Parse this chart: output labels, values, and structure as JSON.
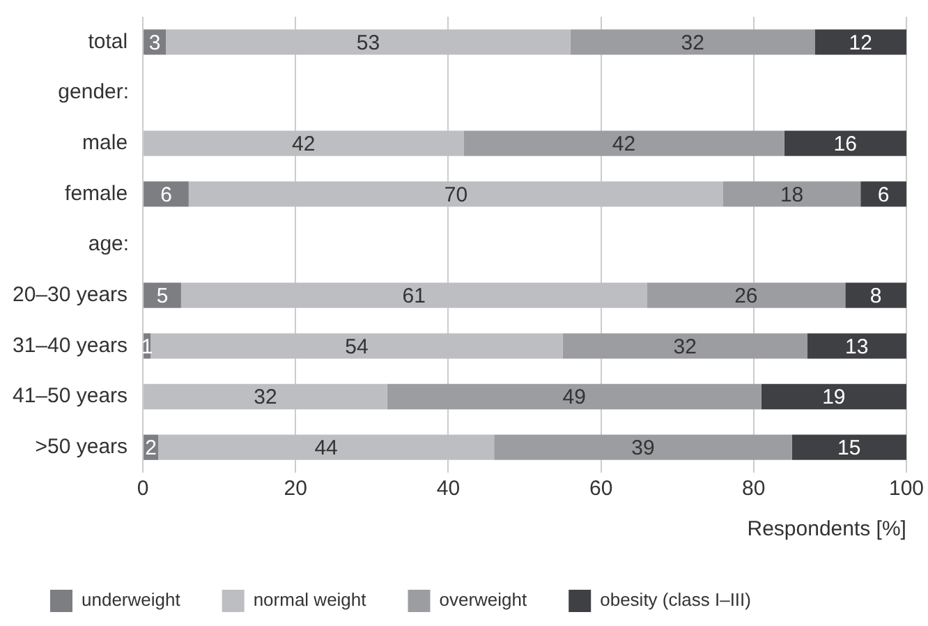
{
  "chart_data": {
    "type": "bar",
    "orientation": "horizontal",
    "stacked": true,
    "xlabel": "Respondents [%]",
    "annotations": [
      "gender:",
      "age:"
    ],
    "categories": [
      "total",
      null,
      "male",
      "female",
      null,
      "20–30 years",
      "31–40 years",
      "41–50 years",
      ">50 years"
    ],
    "series": [
      {
        "name": "underweight",
        "color": "#7d7e82",
        "values": [
          3,
          null,
          null,
          6,
          null,
          5,
          1,
          null,
          2
        ]
      },
      {
        "name": "normal weight",
        "color": "#bdbec2",
        "values": [
          53,
          null,
          42,
          70,
          null,
          61,
          54,
          32,
          44
        ]
      },
      {
        "name": "overweight",
        "color": "#9c9da1",
        "values": [
          32,
          null,
          42,
          18,
          null,
          26,
          32,
          49,
          39
        ]
      },
      {
        "name": "obesity (class I–III)",
        "color": "#3f4043",
        "values": [
          12,
          null,
          16,
          6,
          null,
          8,
          13,
          19,
          15
        ]
      }
    ],
    "xlim": [
      0,
      100
    ],
    "xticks": [
      0,
      20,
      40,
      60,
      80,
      100
    ],
    "grid": "x",
    "legend": "bottom",
    "data_labels": true
  }
}
